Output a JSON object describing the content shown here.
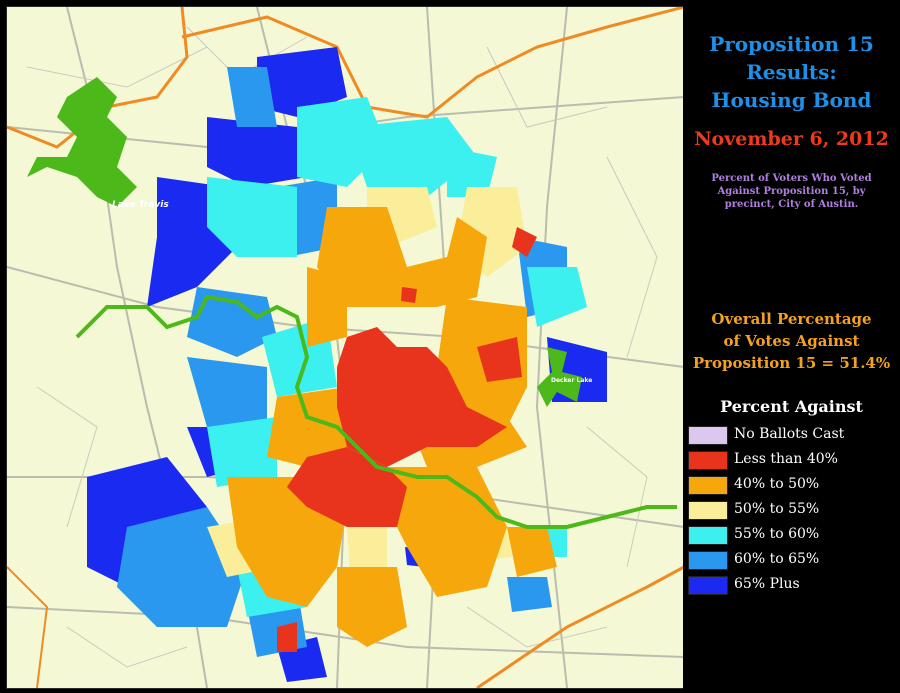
{
  "title": {
    "line1": "Proposition 15",
    "line2": "Results:",
    "line3": "Housing Bond"
  },
  "date": "November 6, 2012",
  "description": {
    "line1": "Percent of Voters Who Voted",
    "line2": "Against Proposition 15, by",
    "line3": "precinct, City of Austin."
  },
  "overall": {
    "line1": "Overall Percentage",
    "line2": "of Votes Against",
    "line3": "Proposition 15 = 51.4%"
  },
  "legend": {
    "title": "Percent Against",
    "items": [
      {
        "label": "No Ballots Cast",
        "color": "#dcc8ee"
      },
      {
        "label": "Less than 40%",
        "color": "#e8341c"
      },
      {
        "label": "40% to 50%",
        "color": "#f5a70c"
      },
      {
        "label": "50% to 55%",
        "color": "#faee9a"
      },
      {
        "label": "55% to 60%",
        "color": "#3cf0f0"
      },
      {
        "label": "60% to 65%",
        "color": "#2a98ee"
      },
      {
        "label": "65% Plus",
        "color": "#1a2af0"
      }
    ]
  },
  "map": {
    "background_color": "#f4f8d4",
    "water_color": "#4cb81a",
    "county_line_color": "#f08a22",
    "labels": {
      "lake_travis": "Lake Travis",
      "walter_long_lake": "Decker Lake"
    }
  }
}
